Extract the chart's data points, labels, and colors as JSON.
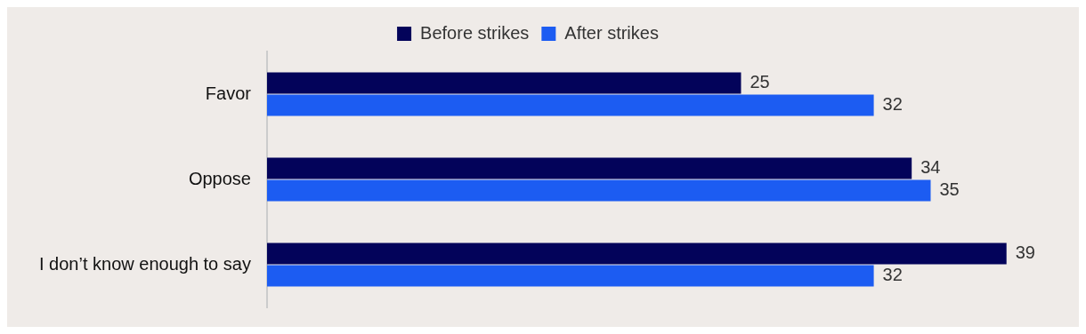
{
  "chart_data": {
    "type": "bar",
    "orientation": "horizontal",
    "categories": [
      "Favor",
      "Oppose",
      "I don’t know enough to say"
    ],
    "series": [
      {
        "name": "Before strikes",
        "color": "#03035a",
        "values": [
          25,
          34,
          39
        ]
      },
      {
        "name": "After strikes",
        "color": "#1c5cf2",
        "values": [
          32,
          35,
          32
        ]
      }
    ],
    "data_labels": true,
    "legend": "top",
    "tick_labels": "y"
  }
}
